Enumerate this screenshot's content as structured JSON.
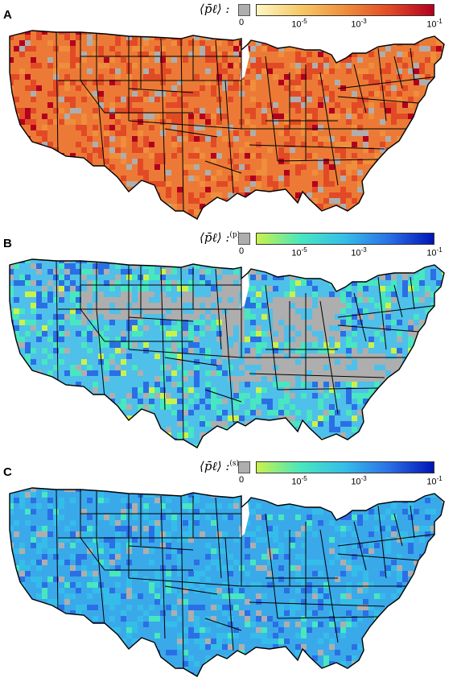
{
  "panels": [
    {
      "letter": "A",
      "legend_label": "⟨p̄ℓ⟩ :",
      "legend_sup": "",
      "colormap": [
        "#fff6c2",
        "#f6c865",
        "#ef8e3c",
        "#e24a26",
        "#b3001f"
      ],
      "fill": "#ec7a36"
    },
    {
      "letter": "B",
      "legend_label": "⟨p̄ℓ⟩ :",
      "legend_sup": "(p)",
      "colormap": [
        "#c9f24a",
        "#47e7bf",
        "#35bde9",
        "#2b6fe6",
        "#0015b5"
      ],
      "fill": "#4fc0e9"
    },
    {
      "letter": "C",
      "legend_label": "⟨p̄ℓ⟩ :",
      "legend_sup": "(s)",
      "colormap": [
        "#c9f24a",
        "#47e7bf",
        "#35bde9",
        "#2b6fe6",
        "#0015b5"
      ],
      "fill": "#3aa9ea"
    }
  ],
  "ticks": [
    {
      "base": "0",
      "exp": ""
    },
    {
      "base": "10",
      "exp": "-5"
    },
    {
      "base": "10",
      "exp": "-3"
    },
    {
      "base": "10",
      "exp": "-1"
    }
  ],
  "nodata_color": "#aeaeae"
}
